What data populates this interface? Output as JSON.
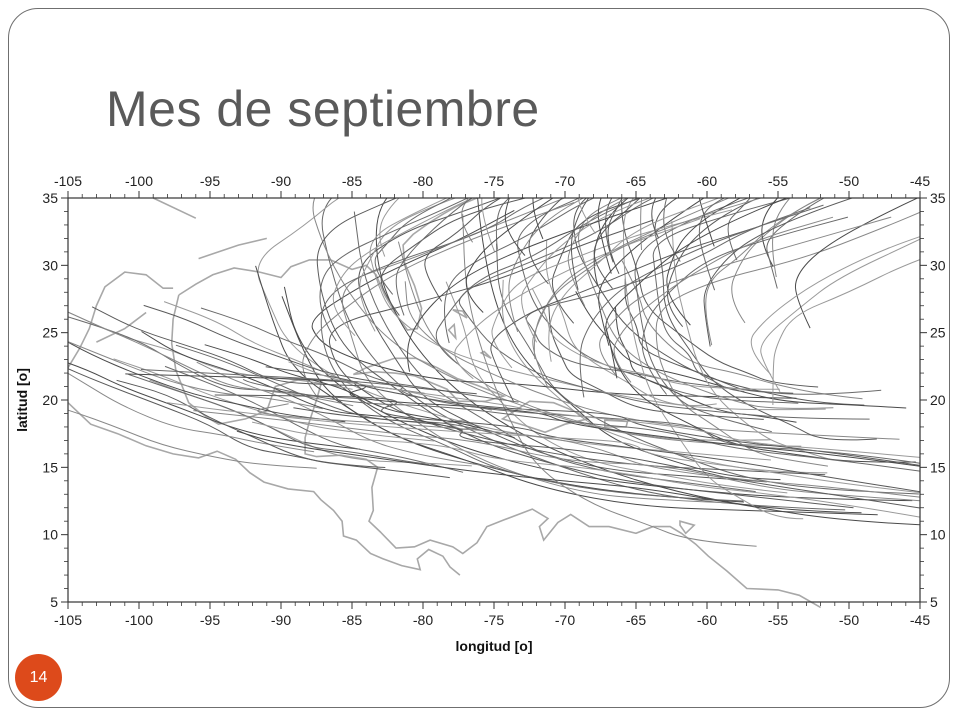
{
  "slide": {
    "title": "Mes de septiembre",
    "page_number": "14",
    "accent_color": "#dd4a1b"
  },
  "map": {
    "type": "hurricane-track-map",
    "region": "North Atlantic / Caribbean",
    "x_axis": {
      "label": "longitud [o]",
      "range": [
        -105,
        -45
      ],
      "ticks": [
        "-105",
        "-100",
        "-95",
        "-90",
        "-85",
        "-80",
        "-75",
        "-70",
        "-65",
        "-60",
        "-55",
        "-50",
        "-45"
      ]
    },
    "y_axis": {
      "label": "latitud [o]",
      "range": [
        5,
        35
      ],
      "ticks": [
        "5",
        "10",
        "15",
        "20",
        "25",
        "30",
        "35"
      ]
    },
    "track_color": "#555555",
    "coastline_color": "#a8a8a8",
    "grid": false
  }
}
